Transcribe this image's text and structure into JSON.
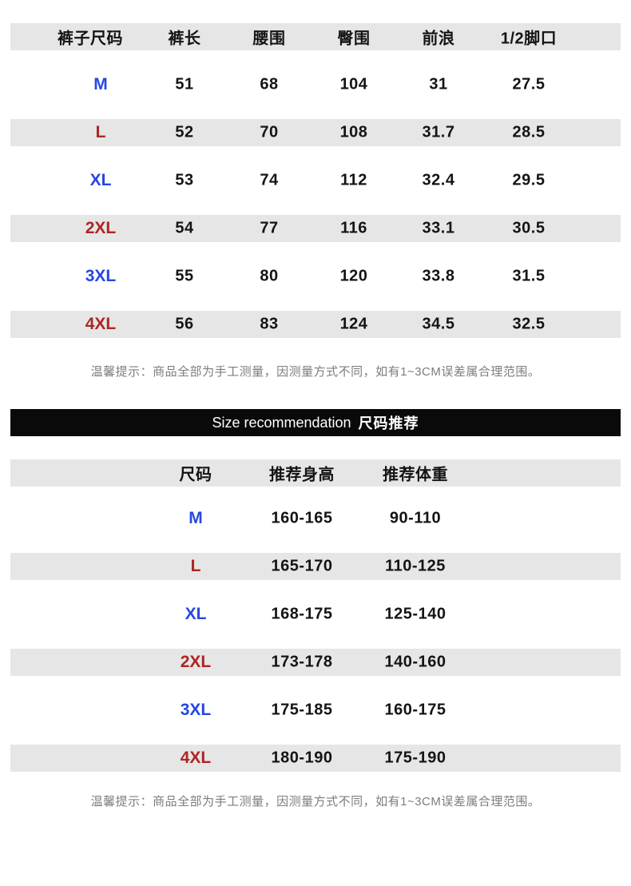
{
  "measurement_table": {
    "headers": [
      "裤子尺码",
      "裤长",
      "腰围",
      "臀围",
      "前浪",
      "1/2脚口"
    ],
    "rows": [
      {
        "size": "M",
        "values": [
          "51",
          "68",
          "104",
          "31",
          "27.5"
        ]
      },
      {
        "size": "L",
        "values": [
          "52",
          "70",
          "108",
          "31.7",
          "28.5"
        ]
      },
      {
        "size": "XL",
        "values": [
          "53",
          "74",
          "112",
          "32.4",
          "29.5"
        ]
      },
      {
        "size": "2XL",
        "values": [
          "54",
          "77",
          "116",
          "33.1",
          "30.5"
        ]
      },
      {
        "size": "3XL",
        "values": [
          "55",
          "80",
          "120",
          "33.8",
          "31.5"
        ]
      },
      {
        "size": "4XL",
        "values": [
          "56",
          "83",
          "124",
          "34.5",
          "32.5"
        ]
      }
    ]
  },
  "tip_note": "温馨提示：商品全部为手工测量，因测量方式不同，如有1~3CM误差属合理范围。",
  "section_banner": {
    "title_en": "Size recommendation",
    "title_zh": "尺码推荐"
  },
  "recommendation_table": {
    "headers": [
      "尺码",
      "推荐身高",
      "推荐体重"
    ],
    "rows": [
      {
        "size": "M",
        "height": "160-165",
        "weight": "90-110"
      },
      {
        "size": "L",
        "height": "165-170",
        "weight": "110-125"
      },
      {
        "size": "XL",
        "height": "168-175",
        "weight": "125-140"
      },
      {
        "size": "2XL",
        "height": "173-178",
        "weight": "140-160"
      },
      {
        "size": "3XL",
        "height": "175-185",
        "weight": "160-175"
      },
      {
        "size": "4XL",
        "height": "180-190",
        "weight": "175-190"
      }
    ]
  },
  "colors": {
    "size_blue": "#2747e0",
    "size_red": "#ad2524",
    "row_band_gray": "#e6e6e6",
    "banner_black": "#0a0a0a",
    "note_gray": "#7d7d7d",
    "text_black": "#141414"
  }
}
